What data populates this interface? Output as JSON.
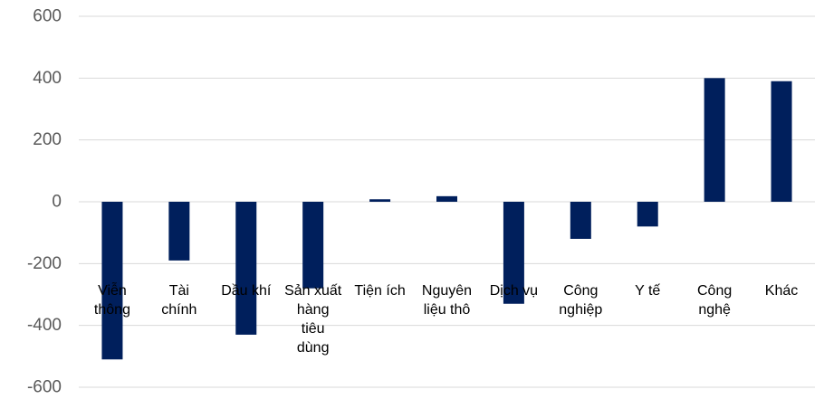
{
  "chart_data": {
    "type": "bar",
    "title": "",
    "xlabel": "",
    "ylabel": "",
    "categories": [
      [
        "Viễn",
        "thông"
      ],
      [
        "Tài",
        "chính"
      ],
      [
        "Dầu khí"
      ],
      [
        "Sản xuất",
        "hàng",
        "tiêu",
        "dùng"
      ],
      [
        "Tiện ích"
      ],
      [
        "Nguyên",
        "liệu thô"
      ],
      [
        "Dịch vụ"
      ],
      [
        "Công",
        "nghiệp"
      ],
      [
        "Y tế"
      ],
      [
        "Công",
        "nghệ"
      ],
      [
        "Khác"
      ]
    ],
    "values": [
      -510,
      -190,
      -430,
      -280,
      8,
      18,
      -330,
      -120,
      -80,
      400,
      390
    ],
    "ylim": [
      -600,
      600
    ],
    "yticks": [
      -600,
      -400,
      -200,
      0,
      200,
      400,
      600
    ],
    "grid": true,
    "bar_color": "#001f5c"
  }
}
